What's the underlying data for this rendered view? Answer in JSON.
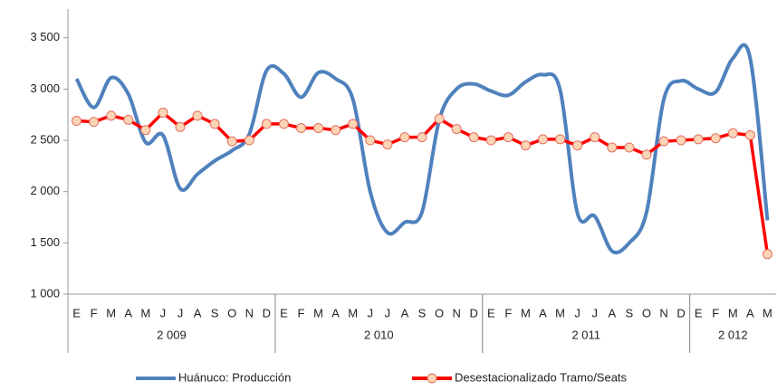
{
  "chart_data": {
    "type": "line",
    "categories": [
      "E",
      "F",
      "M",
      "A",
      "M",
      "J",
      "J",
      "A",
      "S",
      "O",
      "N",
      "D",
      "E",
      "F",
      "M",
      "A",
      "M",
      "J",
      "J",
      "A",
      "S",
      "O",
      "N",
      "D",
      "E",
      "F",
      "M",
      "A",
      "M",
      "J",
      "J",
      "A",
      "S",
      "O",
      "N",
      "D",
      "E",
      "F",
      "M",
      "A",
      "M"
    ],
    "years": [
      "2 009",
      "2 010",
      "2 011",
      "2 012"
    ],
    "ylim": [
      1000,
      3780
    ],
    "yticks": [
      {
        "value": 1000,
        "label": "1 000"
      },
      {
        "value": 1500,
        "label": "1 500"
      },
      {
        "value": 2000,
        "label": "2 000"
      },
      {
        "value": 2500,
        "label": "2 500"
      },
      {
        "value": 3000,
        "label": "3 000"
      },
      {
        "value": 3500,
        "label": "3 500"
      }
    ],
    "series": [
      {
        "name": "Huánuco: Producción",
        "color": "#4f81bd",
        "smooth": true,
        "values": [
          3100,
          2820,
          3110,
          2950,
          2480,
          2550,
          2030,
          2170,
          2300,
          2400,
          2560,
          3180,
          3150,
          2920,
          3160,
          3100,
          2900,
          2000,
          1600,
          1700,
          1800,
          2700,
          3000,
          3050,
          2980,
          2940,
          3070,
          3140,
          2990,
          1790,
          1760,
          1420,
          1500,
          1800,
          2900,
          3080,
          3000,
          2970,
          3300,
          3300,
          1720
        ]
      },
      {
        "name": "Desestacionalizado Tramo/Seats",
        "color": "#ff0000",
        "marker_fill": "#fbd5b5",
        "values": [
          2690,
          2680,
          2740,
          2700,
          2600,
          2770,
          2630,
          2740,
          2660,
          2490,
          2500,
          2660,
          2660,
          2620,
          2620,
          2600,
          2660,
          2500,
          2460,
          2530,
          2530,
          2710,
          2610,
          2530,
          2500,
          2530,
          2450,
          2510,
          2510,
          2450,
          2530,
          2430,
          2430,
          2360,
          2490,
          2500,
          2510,
          2520,
          2570,
          2550,
          1390
        ]
      }
    ]
  }
}
